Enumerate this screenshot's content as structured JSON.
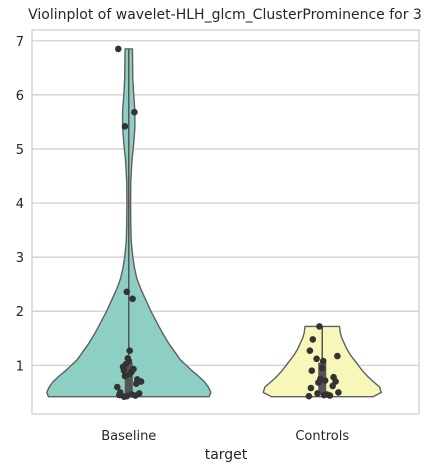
{
  "chart_data": {
    "type": "violin",
    "title": "Violinplot of wavelet-HLH_glcm_ClusterProminence for 3",
    "xlabel": "target",
    "ylabel": "",
    "categories": [
      "Baseline",
      "Controls"
    ],
    "ylim": [
      0.1,
      7.2
    ],
    "yticks": [
      1,
      2,
      3,
      4,
      5,
      6,
      7
    ],
    "grid": true,
    "series": [
      {
        "category": "Baseline",
        "color": "#8ecfc3",
        "range": [
          0.42,
          6.85
        ],
        "quartiles": [
          0.46,
          0.85,
          1.05
        ],
        "points": [
          6.85,
          5.68,
          5.42,
          2.36,
          2.23,
          1.27,
          1.13,
          1.08,
          1.02,
          0.97,
          0.93,
          0.9,
          0.88,
          0.84,
          0.8,
          0.74,
          0.7,
          0.66,
          0.6,
          0.5,
          0.48,
          0.46,
          0.45,
          0.44,
          0.43,
          0.42
        ],
        "jitter": [
          -0.11,
          0.06,
          -0.04,
          -0.02,
          0.04,
          0.01,
          -0.01,
          0.0,
          -0.03,
          -0.06,
          0.05,
          -0.05,
          0.03,
          0.01,
          -0.04,
          0.09,
          0.13,
          0.08,
          -0.12,
          -0.09,
          0.11,
          0.03,
          -0.1,
          0.07,
          -0.02,
          -0.05
        ],
        "density": [
          [
            0.42,
            0.98
          ],
          [
            0.5,
            1.0
          ],
          [
            0.6,
            0.97
          ],
          [
            0.7,
            0.92
          ],
          [
            0.8,
            0.85
          ],
          [
            0.9,
            0.77
          ],
          [
            1.0,
            0.7
          ],
          [
            1.1,
            0.63
          ],
          [
            1.25,
            0.56
          ],
          [
            1.4,
            0.49
          ],
          [
            1.6,
            0.41
          ],
          [
            1.8,
            0.34
          ],
          [
            2.0,
            0.27
          ],
          [
            2.2,
            0.21
          ],
          [
            2.4,
            0.15
          ],
          [
            2.6,
            0.1
          ],
          [
            2.8,
            0.07
          ],
          [
            3.0,
            0.05
          ],
          [
            3.3,
            0.03
          ],
          [
            3.6,
            0.025
          ],
          [
            4.0,
            0.022
          ],
          [
            4.4,
            0.025
          ],
          [
            4.8,
            0.04
          ],
          [
            5.1,
            0.06
          ],
          [
            5.4,
            0.075
          ],
          [
            5.7,
            0.075
          ],
          [
            6.0,
            0.06
          ],
          [
            6.3,
            0.05
          ],
          [
            6.6,
            0.047
          ],
          [
            6.85,
            0.045
          ]
        ]
      },
      {
        "category": "Controls",
        "color": "#f7f7b9",
        "range": [
          0.42,
          1.72
        ],
        "quartiles": [
          0.46,
          0.74,
          1.05
        ],
        "points": [
          1.72,
          1.48,
          1.27,
          1.17,
          1.12,
          1.08,
          0.95,
          0.9,
          0.78,
          0.75,
          0.72,
          0.7,
          0.68,
          0.62,
          0.58,
          0.5,
          0.48,
          0.46,
          0.45,
          0.44,
          0.43
        ],
        "jitter": [
          -0.03,
          -0.1,
          -0.13,
          0.16,
          -0.06,
          0.01,
          0.0,
          -0.11,
          0.12,
          -0.02,
          0.03,
          0.14,
          -0.04,
          0.11,
          -0.12,
          0.17,
          -0.05,
          0.05,
          0.02,
          0.08,
          -0.14
        ],
        "density": [
          [
            0.42,
            0.62
          ],
          [
            0.5,
            0.72
          ],
          [
            0.6,
            0.7
          ],
          [
            0.7,
            0.62
          ],
          [
            0.8,
            0.55
          ],
          [
            0.9,
            0.49
          ],
          [
            1.0,
            0.44
          ],
          [
            1.1,
            0.39
          ],
          [
            1.2,
            0.34
          ],
          [
            1.3,
            0.3
          ],
          [
            1.4,
            0.27
          ],
          [
            1.5,
            0.24
          ],
          [
            1.6,
            0.22
          ],
          [
            1.72,
            0.21
          ]
        ]
      }
    ]
  }
}
